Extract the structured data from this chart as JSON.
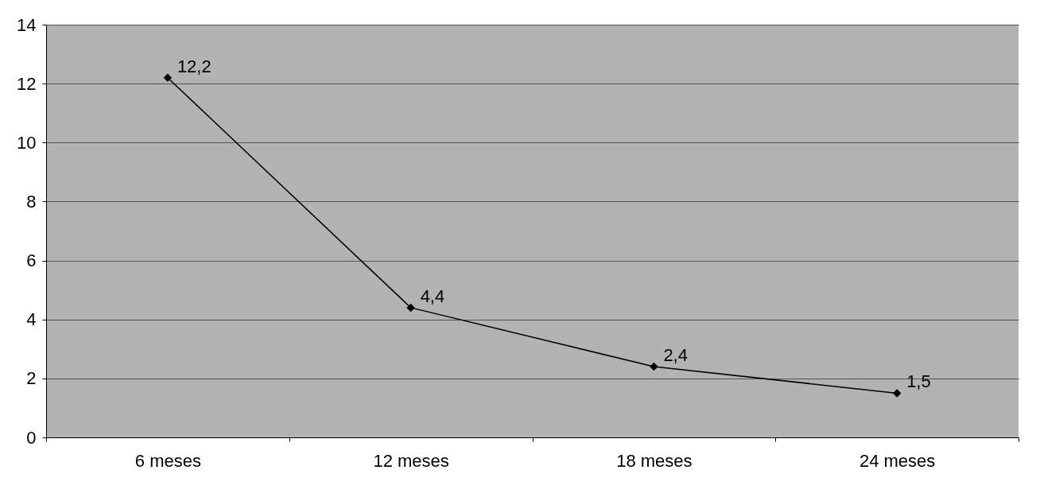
{
  "chart_data": {
    "type": "line",
    "categories": [
      "6 meses",
      "12 meses",
      "18 meses",
      "24 meses"
    ],
    "series": [
      {
        "color": "#000000",
        "values": [
          12.2,
          4.4,
          2.4,
          1.5
        ],
        "value_labels": [
          "12,2",
          "4,4",
          "2,4",
          "1,5"
        ]
      }
    ],
    "ylim": [
      0,
      14
    ],
    "yticks": [
      0,
      2,
      4,
      6,
      8,
      10,
      12,
      14
    ],
    "grid": "y",
    "legend": false,
    "marker": "diamond",
    "line_style": "solid"
  }
}
